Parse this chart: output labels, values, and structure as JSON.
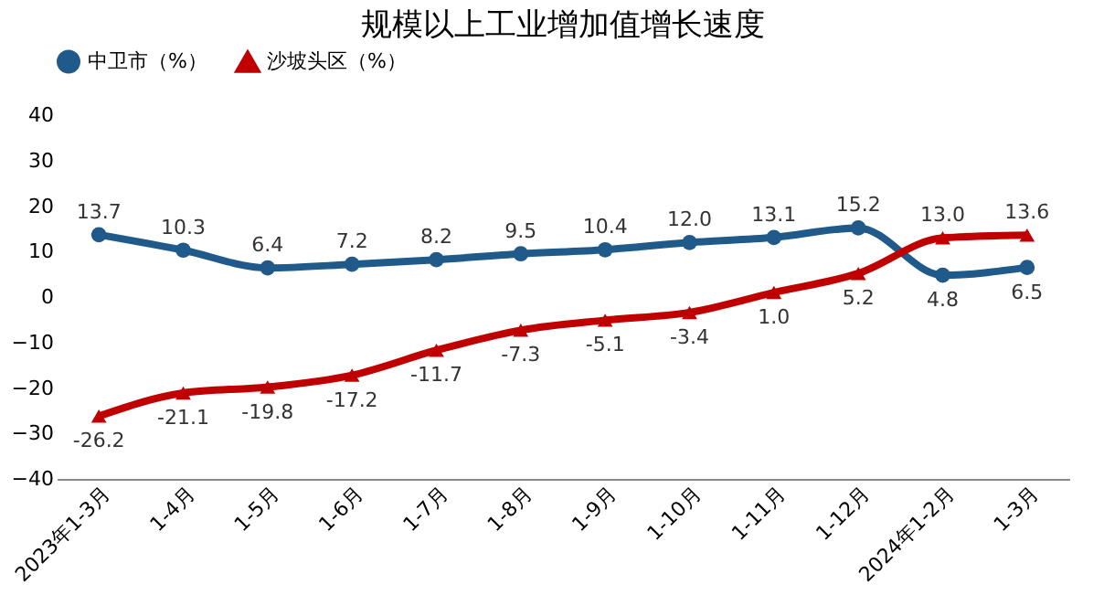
{
  "chart_data": {
    "type": "line",
    "title": "规模以上工业增加值增长速度",
    "categories": [
      "2023年1-3月",
      "1-4月",
      "1-5月",
      "1-6月",
      "1-7月",
      "1-8月",
      "1-9月",
      "1-10月",
      "1-11月",
      "1-12月",
      "2024年1-2月",
      "1-3月"
    ],
    "series": [
      {
        "name": "中卫市（%）",
        "color": "#1f5a8a",
        "marker": "circle",
        "values": [
          13.7,
          10.3,
          6.4,
          7.2,
          8.2,
          9.5,
          10.4,
          12.0,
          13.1,
          15.2,
          4.8,
          6.5
        ],
        "value_labels": [
          "13.7",
          "10.3",
          "6.4",
          "7.2",
          "8.2",
          "9.5",
          "10.4",
          "12.0",
          "13.1",
          "15.2",
          "4.8",
          "6.5"
        ]
      },
      {
        "name": "沙坡头区（%）",
        "color": "#c00000",
        "marker": "triangle",
        "values": [
          -26.2,
          -21.1,
          -19.8,
          -17.2,
          -11.7,
          -7.3,
          -5.1,
          -3.4,
          1.0,
          5.2,
          13.0,
          13.6
        ],
        "value_labels": [
          "-26.2",
          "-21.1",
          "-19.8",
          "-17.2",
          "-11.7",
          "-7.3",
          "-5.1",
          "-3.4",
          "1.0",
          "5.2",
          "13.0",
          "13.6"
        ]
      }
    ],
    "ylim": [
      -40,
      40
    ],
    "yticks": [
      -40,
      -30,
      -20,
      -10,
      0,
      10,
      20,
      30,
      40
    ],
    "grid": false,
    "legend": "top",
    "line_style": "solid"
  }
}
